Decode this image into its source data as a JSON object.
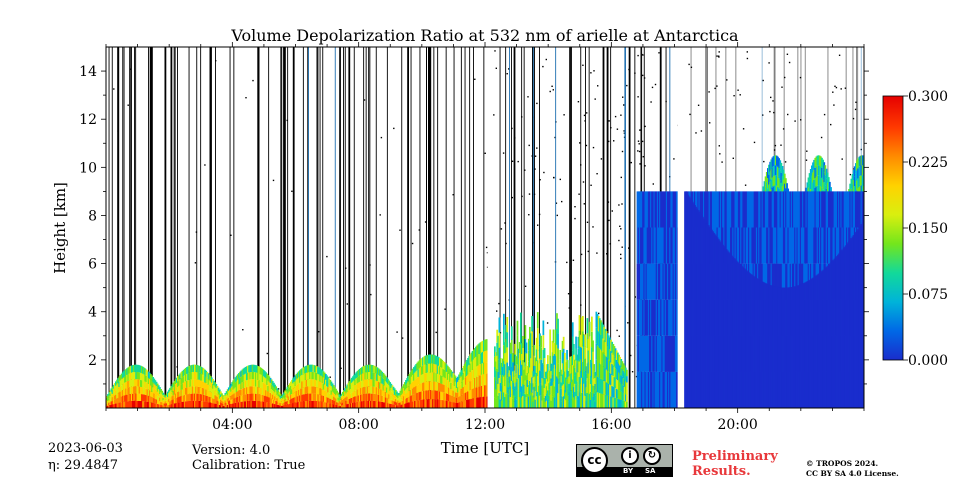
{
  "chart_data": {
    "type": "heatmap",
    "title": "Volume Depolarization Ratio at 532 nm of arielle at Antarctica",
    "xlabel": "Time [UTC]",
    "ylabel": "Height [km]",
    "x_range_hours": [
      0,
      24
    ],
    "ylim": [
      0,
      15
    ],
    "x_ticks": [
      {
        "value": 4,
        "label": "04:00"
      },
      {
        "value": 8,
        "label": "08:00"
      },
      {
        "value": 12,
        "label": "12:00"
      },
      {
        "value": 16,
        "label": "16:00"
      },
      {
        "value": 20,
        "label": "20:00"
      }
    ],
    "y_ticks": [
      {
        "value": 2,
        "label": "2"
      },
      {
        "value": 4,
        "label": "4"
      },
      {
        "value": 6,
        "label": "6"
      },
      {
        "value": 8,
        "label": "8"
      },
      {
        "value": 10,
        "label": "10"
      },
      {
        "value": 12,
        "label": "12"
      },
      {
        "value": 14,
        "label": "14"
      }
    ],
    "colorbar": {
      "min": 0.0,
      "max": 0.3,
      "ticks": [
        "0.000",
        "0.075",
        "0.150",
        "0.225",
        "0.300"
      ],
      "colormap": [
        "#1a2dcc",
        "#0068e6",
        "#00b3d9",
        "#12d99a",
        "#73e61c",
        "#d9ef0f",
        "#ffd200",
        "#ff8c00",
        "#ff3a00",
        "#e60000"
      ]
    },
    "data_gaps_hours": [
      [
        12.08,
        12.25
      ],
      [
        18.1,
        18.3
      ]
    ],
    "features": [
      {
        "name": "boundary layer",
        "t_start": 0,
        "t_end": 12.08,
        "h_top": 1.5,
        "value": 0.27
      },
      {
        "name": "aerosol layer",
        "t_start": 12.25,
        "t_end": 16.5,
        "h_top": 4,
        "value": 0.12
      },
      {
        "name": "upper layer",
        "t_start": 20.5,
        "t_end": 24,
        "h_top": 10.5,
        "value": 0.09
      },
      {
        "name": "low background",
        "t_start": 16.8,
        "t_end": 24,
        "h_top": 9,
        "value": 0.01
      }
    ]
  },
  "info": {
    "date": "2023-06-03",
    "eta": "η: 29.4847",
    "version": "Version: 4.0",
    "calibration": "Calibration: True",
    "preliminary_line1": "Preliminary",
    "preliminary_line2": "Results.",
    "copyright_line1": "© TROPOS 2024.",
    "copyright_line2": "CC BY SA 4.0 License.",
    "license_by": "BY",
    "license_sa": "SA"
  }
}
